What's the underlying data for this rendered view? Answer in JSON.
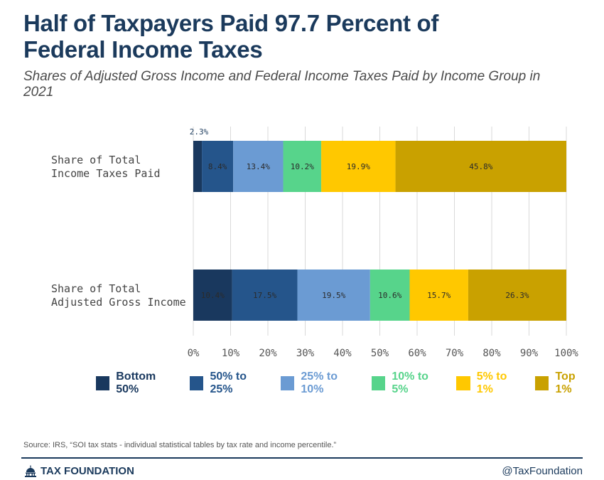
{
  "header": {
    "title": "Half of Taxpayers Paid 97.7 Percent of Federal Income Taxes",
    "subtitle": "Shares of Adjusted Gross Income and Federal Income Taxes Paid by Income Group in 2021"
  },
  "chart_data": {
    "type": "bar",
    "orientation": "horizontal",
    "stacked": true,
    "categories": [
      "Share of Total Income Taxes Paid",
      "Share of Total Adjusted Gross Income"
    ],
    "category_lines": [
      [
        "Share of Total",
        "Income Taxes Paid"
      ],
      [
        "Share of Total",
        "Adjusted Gross Income"
      ]
    ],
    "series": [
      {
        "name": "Bottom 50%",
        "color": "#19385e",
        "values": [
          2.3,
          10.4
        ],
        "labels": [
          "2.3%",
          "10.4%"
        ]
      },
      {
        "name": "50% to 25%",
        "color": "#25558b",
        "values": [
          8.4,
          17.5
        ],
        "labels": [
          "8.4%",
          "17.5%"
        ]
      },
      {
        "name": "25% to 10%",
        "color": "#6b9bd3",
        "values": [
          13.4,
          19.5
        ],
        "labels": [
          "13.4%",
          "19.5%"
        ]
      },
      {
        "name": "10% to 5%",
        "color": "#57d48b",
        "values": [
          10.2,
          10.6
        ],
        "labels": [
          "10.2%",
          "10.6%"
        ]
      },
      {
        "name": "5% to 1%",
        "color": "#ffc800",
        "values": [
          19.9,
          15.7
        ],
        "labels": [
          "19.9%",
          "15.7%"
        ]
      },
      {
        "name": "Top 1%",
        "color": "#c9a100",
        "values": [
          45.8,
          26.3
        ],
        "labels": [
          "45.8%",
          "26.3%"
        ]
      }
    ],
    "xlim": [
      0,
      100
    ],
    "ticks": [
      0,
      10,
      20,
      30,
      40,
      50,
      60,
      70,
      80,
      90,
      100
    ],
    "tick_labels": [
      "0%",
      "10%",
      "20%",
      "30%",
      "40%",
      "50%",
      "60%",
      "70%",
      "80%",
      "90%",
      "100%"
    ],
    "grid": true,
    "legend_position": "bottom"
  },
  "footer": {
    "source": "Source: IRS, “SOI tax stats - individual statistical tables by tax rate and income percentile.”",
    "brand": "TAX FOUNDATION",
    "handle": "@TaxFoundation"
  },
  "icons": {
    "brand": "capitol-dome-icon"
  }
}
